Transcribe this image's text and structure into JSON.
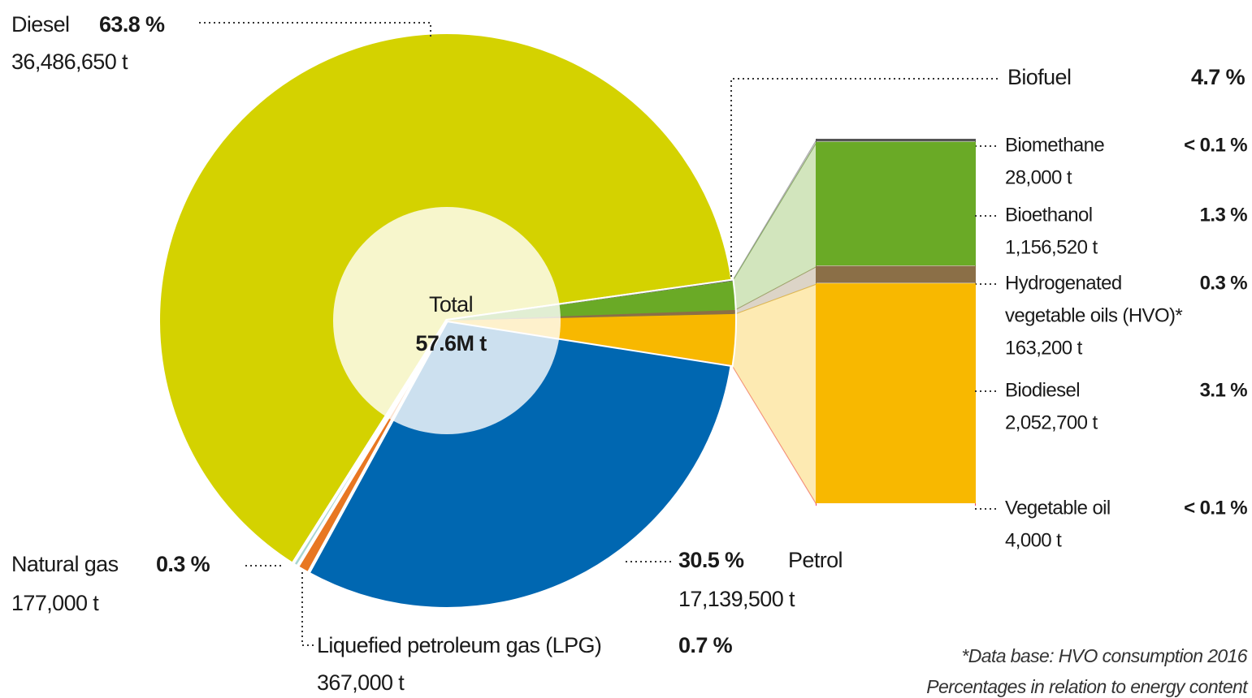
{
  "chart_data": {
    "type": "pie-of-bar",
    "center_label": "Total",
    "center_value_label": "57.6M t",
    "slices": {
      "categories": [
        "Diesel",
        "Biofuel",
        "Petrol",
        "Liquefied petroleum gas (LPG)",
        "Natural gas"
      ],
      "values": [
        63.8,
        4.7,
        30.5,
        0.7,
        0.3
      ],
      "value_labels": [
        "63.8 %",
        "4.7 %",
        "30.5 %",
        "0.7 %",
        "0.3 %"
      ],
      "amount_labels": [
        "36,486,650 t",
        null,
        "17,139,500 t",
        "367,000 t",
        "177,000 t"
      ],
      "colors": [
        "#d4d200",
        "#6aaa26",
        "#0067b1",
        "#e87722",
        "#a8d5d0"
      ]
    },
    "breakdown": {
      "categories": [
        [
          "Biomethane"
        ],
        [
          "Bioethanol"
        ],
        [
          "Hydrogenated",
          "vegetable oils (HVO)*"
        ],
        [
          "Biodiesel"
        ],
        [
          "Vegetable oil"
        ]
      ],
      "amounts": [
        28000,
        1156520,
        163200,
        2052700,
        4000
      ],
      "amount_labels": [
        "28,000 t",
        "1,156,520 t",
        "163,200 t",
        "2,052,700 t",
        "4,000 t"
      ],
      "value_labels": [
        "< 0.1 %",
        "1.3 %",
        "0.3 %",
        "3.1 %",
        "< 0.1 %"
      ],
      "colors": [
        "#555555",
        "#6aaa26",
        "#8b6f47",
        "#f8b800",
        "#e8336b"
      ]
    },
    "notes": [
      "*Data base: HVO consumption 2016",
      "Percentages in relation to energy content"
    ]
  }
}
